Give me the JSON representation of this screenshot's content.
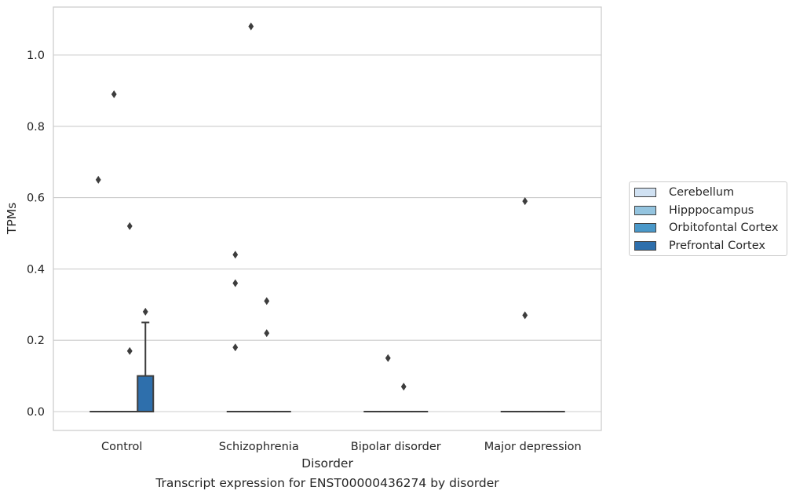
{
  "chart_data": {
    "type": "box",
    "xlabel": "Disorder",
    "ylabel": "TPMs",
    "caption": "Transcript expression for ENST00000436274 by disorder",
    "categories": [
      "Control",
      "Schizophrenia",
      "Bipolar disorder",
      "Major depression"
    ],
    "ylim": [
      -0.05,
      1.14
    ],
    "yticks": [
      0.0,
      0.2,
      0.4,
      0.6,
      0.8,
      1.0
    ],
    "ytick_labels": [
      "0.0",
      "0.2",
      "0.4",
      "0.6",
      "0.8",
      "1.0"
    ],
    "grid": "horizontal",
    "legend_position": "right",
    "series": [
      {
        "name": "Cerebellum",
        "color": "#d0e1f2",
        "boxes": [
          {
            "q1": 0,
            "median": 0,
            "q3": 0,
            "whisker_low": 0,
            "whisker_high": 0,
            "outliers": [
              0.65
            ]
          },
          {
            "q1": 0,
            "median": 0,
            "q3": 0,
            "whisker_low": 0,
            "whisker_high": 0,
            "outliers": [
              0.44,
              0.36,
              0.18
            ]
          },
          {
            "q1": 0,
            "median": 0,
            "q3": 0,
            "whisker_low": 0,
            "whisker_high": 0,
            "outliers": []
          },
          {
            "q1": 0,
            "median": 0,
            "q3": 0,
            "whisker_low": 0,
            "whisker_high": 0,
            "outliers": []
          }
        ]
      },
      {
        "name": "Hipppocampus",
        "color": "#94c4df",
        "boxes": [
          {
            "q1": 0,
            "median": 0,
            "q3": 0,
            "whisker_low": 0,
            "whisker_high": 0,
            "outliers": [
              0.89
            ]
          },
          {
            "q1": 0,
            "median": 0,
            "q3": 0,
            "whisker_low": 0,
            "whisker_high": 0,
            "outliers": [
              1.08
            ]
          },
          {
            "q1": 0,
            "median": 0,
            "q3": 0,
            "whisker_low": 0,
            "whisker_high": 0,
            "outliers": [
              0.15
            ]
          },
          {
            "q1": 0,
            "median": 0,
            "q3": 0,
            "whisker_low": 0,
            "whisker_high": 0,
            "outliers": [
              0.59,
              0.27
            ]
          }
        ]
      },
      {
        "name": "Orbitofontal Cortex",
        "color": "#4a98c9",
        "boxes": [
          {
            "q1": 0,
            "median": 0,
            "q3": 0,
            "whisker_low": 0,
            "whisker_high": 0,
            "outliers": [
              0.52,
              0.17
            ]
          },
          {
            "q1": 0,
            "median": 0,
            "q3": 0,
            "whisker_low": 0,
            "whisker_high": 0,
            "outliers": [
              0.31,
              0.22
            ]
          },
          {
            "q1": 0,
            "median": 0,
            "q3": 0,
            "whisker_low": 0,
            "whisker_high": 0,
            "outliers": [
              0.07
            ]
          },
          {
            "q1": 0,
            "median": 0,
            "q3": 0,
            "whisker_low": 0,
            "whisker_high": 0,
            "outliers": []
          }
        ]
      },
      {
        "name": "Prefrontal Cortex",
        "color": "#2e6fac",
        "boxes": [
          {
            "q1": 0,
            "median": 0,
            "q3": 0.1,
            "whisker_low": 0,
            "whisker_high": 0.25,
            "outliers": [
              0.28
            ]
          },
          {
            "q1": 0,
            "median": 0,
            "q3": 0,
            "whisker_low": 0,
            "whisker_high": 0,
            "outliers": []
          },
          {
            "q1": 0,
            "median": 0,
            "q3": 0,
            "whisker_low": 0,
            "whisker_high": 0,
            "outliers": []
          },
          {
            "q1": 0,
            "median": 0,
            "q3": 0,
            "whisker_low": 0,
            "whisker_high": 0,
            "outliers": []
          }
        ]
      }
    ]
  }
}
